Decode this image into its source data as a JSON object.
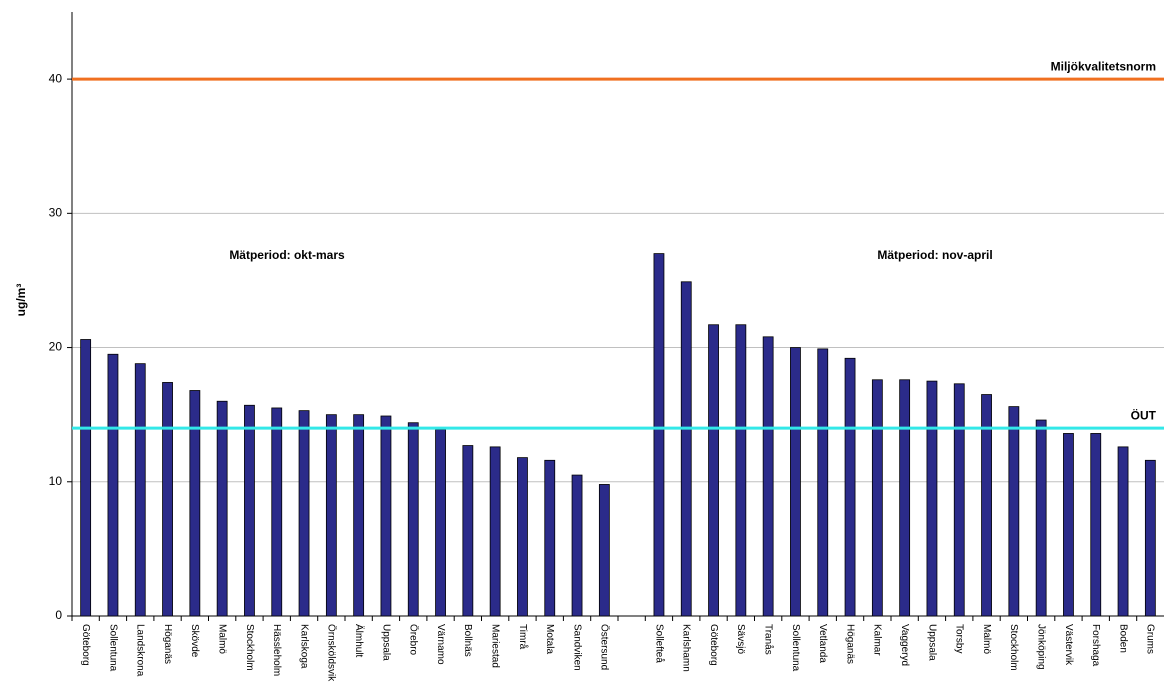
{
  "chart_data": {
    "type": "bar",
    "y_label": "ug/m³",
    "categories": [
      "Göteborg",
      "Sollentuna",
      "Landskrona",
      "Höganäs",
      "Skövde",
      "Malmö",
      "Stockholm",
      "Hässleholm",
      "Karlskoga",
      "Örnsköldsvik",
      "Älmhult",
      "Uppsala",
      "Örebro",
      "Värnamo",
      "Bollnäs",
      "Mariestad",
      "Timrå",
      "Motala",
      "Sandviken",
      "Östersund",
      null,
      "Sollefteå",
      "Karlshamn",
      "Göteborg",
      "Sävsjö",
      "Tranås",
      "Sollentuna",
      "Vetlanda",
      "Höganäs",
      "Kalmar",
      "Vaggeryd",
      "Uppsala",
      "Torsby",
      "Malmö",
      "Stockholm",
      "Jönköping",
      "Västervik",
      "Forshaga",
      "Boden",
      "Grums"
    ],
    "values": [
      20.6,
      19.5,
      18.8,
      17.4,
      16.8,
      16.0,
      15.7,
      15.5,
      15.3,
      15.0,
      15.0,
      14.9,
      14.4,
      13.9,
      12.7,
      12.6,
      11.8,
      11.6,
      10.5,
      9.8,
      null,
      27.0,
      24.9,
      21.7,
      21.7,
      20.8,
      20.0,
      19.9,
      19.2,
      17.6,
      17.6,
      17.5,
      17.3,
      16.5,
      15.6,
      14.6,
      13.6,
      13.6,
      12.6,
      11.6
    ],
    "color": "#2b2b8a",
    "ylim": [
      0,
      45
    ],
    "yticks": [
      0,
      10,
      20,
      30,
      40
    ],
    "grid": true,
    "annotations": [
      "Mätperiod: okt-mars",
      "Mätperiod: nov-april"
    ],
    "reference_lines": [
      {
        "label": "Miljökvalitetsnorm",
        "value": 40,
        "color": "#f07020"
      },
      {
        "label": "ÖUT",
        "value": 14,
        "color": "#33e8e8"
      }
    ]
  }
}
